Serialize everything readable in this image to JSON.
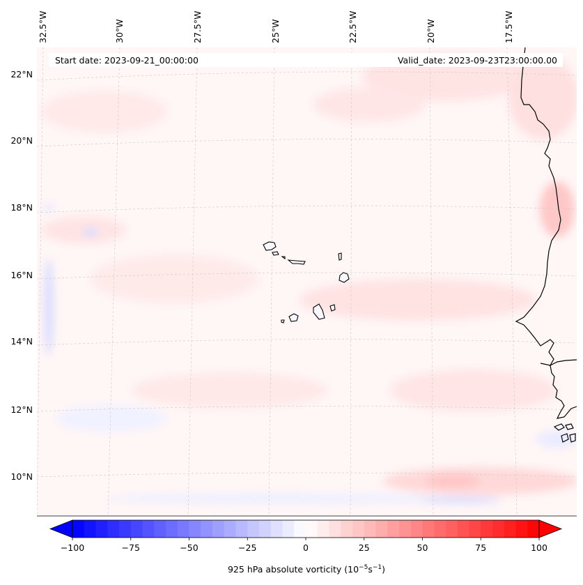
{
  "map": {
    "start_label": "Start date: 2023-09-21_00:00:00",
    "valid_label": "Valid_date: 2023-09-23T23:00:00.00",
    "lon_labels": [
      "32.5°W",
      "30°W",
      "27.5°W",
      "25°W",
      "22.5°W",
      "20°W",
      "17.5°W"
    ],
    "lat_labels": [
      "22°N",
      "20°N",
      "18°N",
      "16°N",
      "14°N",
      "12°N",
      "10°N"
    ],
    "extent": {
      "lon_min": -33.0,
      "lon_max": -15.0,
      "lat_min": 9.0,
      "lat_max": 22.8
    }
  },
  "colorbar": {
    "label": "925 hPa absolute vorticity (10",
    "unit_exp1": "−5",
    "unit_mid": "s",
    "unit_exp2": "−1",
    "unit_close": ")",
    "ticks": [
      "−100",
      "−75",
      "−50",
      "−25",
      "0",
      "25",
      "50",
      "75",
      "100"
    ],
    "min": -100,
    "max": 100,
    "step": 5,
    "neg_color": "#0000ff",
    "pos_color": "#ff0000"
  }
}
